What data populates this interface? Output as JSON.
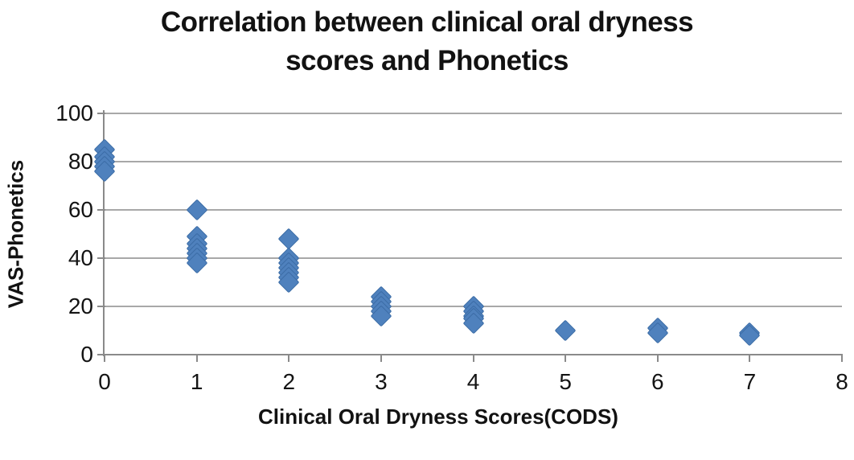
{
  "title": {
    "line1": "Correlation between clinical oral dryness",
    "line2": "scores and Phonetics"
  },
  "colors": {
    "background": "#FFFFFF",
    "marker_fill": "#4F81BD",
    "marker_border": "#3A6BA5",
    "gridline": "#A8A8A8",
    "axis": "#8A8A8A",
    "text": "#121212"
  },
  "chart_data": {
    "type": "scatter",
    "title": "Correlation between clinical oral dryness scores and Phonetics",
    "xlabel": "Clinical Oral Dryness Scores(CODS)",
    "ylabel": "VAS-Phonetics",
    "xlim": [
      0,
      8
    ],
    "ylim": [
      0,
      100
    ],
    "x_ticks": [
      0,
      1,
      2,
      3,
      4,
      5,
      6,
      7,
      8
    ],
    "y_ticks": [
      0,
      20,
      40,
      60,
      80,
      100
    ],
    "grid": "horizontal-only",
    "legend": "none",
    "marker": {
      "shape": "diamond",
      "color": "#4F81BD",
      "border_color": "#3A6BA5"
    },
    "series": [
      {
        "name": "VAS-Phonetics",
        "points": [
          {
            "x": 0,
            "y": 85
          },
          {
            "x": 0,
            "y": 82
          },
          {
            "x": 0,
            "y": 80
          },
          {
            "x": 0,
            "y": 78
          },
          {
            "x": 0,
            "y": 76
          },
          {
            "x": 1,
            "y": 60
          },
          {
            "x": 1,
            "y": 49
          },
          {
            "x": 1,
            "y": 46
          },
          {
            "x": 1,
            "y": 44
          },
          {
            "x": 1,
            "y": 42
          },
          {
            "x": 1,
            "y": 40
          },
          {
            "x": 1,
            "y": 38
          },
          {
            "x": 2,
            "y": 48
          },
          {
            "x": 2,
            "y": 40
          },
          {
            "x": 2,
            "y": 38
          },
          {
            "x": 2,
            "y": 36
          },
          {
            "x": 2,
            "y": 34
          },
          {
            "x": 2,
            "y": 32
          },
          {
            "x": 2,
            "y": 30
          },
          {
            "x": 3,
            "y": 24
          },
          {
            "x": 3,
            "y": 22
          },
          {
            "x": 3,
            "y": 20
          },
          {
            "x": 3,
            "y": 18
          },
          {
            "x": 3,
            "y": 16
          },
          {
            "x": 4,
            "y": 20
          },
          {
            "x": 4,
            "y": 18
          },
          {
            "x": 4,
            "y": 16
          },
          {
            "x": 4,
            "y": 15
          },
          {
            "x": 4,
            "y": 13
          },
          {
            "x": 5,
            "y": 10
          },
          {
            "x": 6,
            "y": 11
          },
          {
            "x": 6,
            "y": 9
          },
          {
            "x": 7,
            "y": 9
          },
          {
            "x": 7,
            "y": 8
          }
        ]
      }
    ]
  }
}
